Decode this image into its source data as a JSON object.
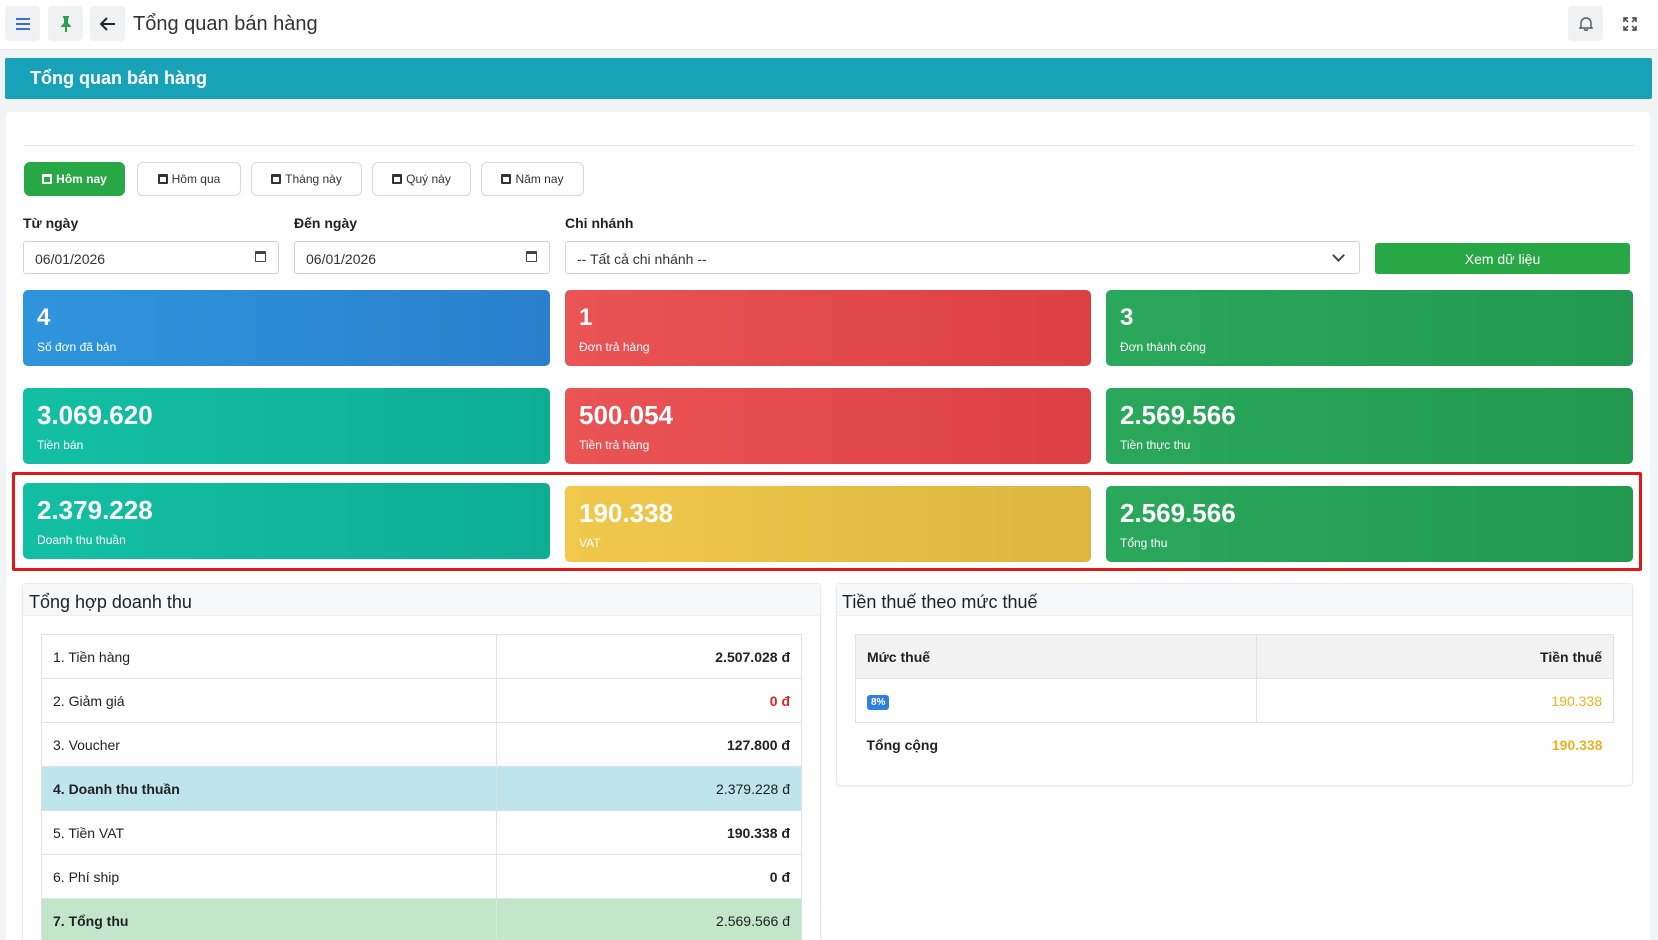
{
  "header": {
    "title": "Tổng quan bán hàng"
  },
  "page_title": "Tổng quan bán hàng",
  "icons": {
    "menu": "menu-icon",
    "pin": "pin-icon",
    "back": "arrow-left-icon",
    "bell": "bell-icon",
    "fullscreen": "fullscreen-icon",
    "calendar": "calendar-icon",
    "dropdown": "chevron-down-icon"
  },
  "periods": [
    {
      "label": "Hôm nay",
      "active": true
    },
    {
      "label": "Hôm qua",
      "active": false
    },
    {
      "label": "Tháng này",
      "active": false
    },
    {
      "label": "Quý này",
      "active": false
    },
    {
      "label": "Năm nay",
      "active": false
    }
  ],
  "filters": {
    "from_label": "Từ ngày",
    "from_value": "06/01/2026",
    "to_label": "Đến ngày",
    "to_value": "06/01/2026",
    "branch_label": "Chi nhánh",
    "branch_value": "-- Tất cả chi nhánh --",
    "view_button": "Xem dữ liệu"
  },
  "stats_row1": [
    {
      "value": "4",
      "label": "Số đơn đã bán",
      "color": "#2d8bd4"
    },
    {
      "value": "1",
      "label": "Đơn trả hàng",
      "color": "#e24a4c"
    },
    {
      "value": "3",
      "label": "Đơn thành công",
      "color": "#27a155"
    }
  ],
  "stats_row2": [
    {
      "value": "3.069.620",
      "label": "Tiền bán",
      "color": "#11b89e"
    },
    {
      "value": "500.054",
      "label": "Tiền trả hàng",
      "color": "#e24a4c"
    },
    {
      "value": "2.569.566",
      "label": "Tiền thực thu",
      "color": "#27a155"
    }
  ],
  "stats_row3": [
    {
      "value": "2.379.228",
      "label": "Doanh thu thuần",
      "color": "#11b89e"
    },
    {
      "value": "190.338",
      "label": "VAT",
      "color": "#e8c046"
    },
    {
      "value": "2.569.566",
      "label": "Tổng thu",
      "color": "#27a155"
    }
  ],
  "revenue": {
    "title": "Tổng hợp doanh thu",
    "rows": [
      {
        "label": "1. Tiền hàng",
        "amount": "2.507.028 đ"
      },
      {
        "label": "2. Giảm giá",
        "amount": "0 đ"
      },
      {
        "label": "3. Voucher",
        "amount": "127.800 đ"
      },
      {
        "label": "4. Doanh thu thuần",
        "amount": "2.379.228 đ"
      },
      {
        "label": "5. Tiền VAT",
        "amount": "190.338 đ"
      },
      {
        "label": "6. Phí ship",
        "amount": "0 đ"
      },
      {
        "label": "7. Tổng thu",
        "amount": "2.569.566 đ"
      }
    ]
  },
  "tax": {
    "title": "Tiền thuế theo mức thuế",
    "col_rate": "Mức thuế",
    "col_amount": "Tiền thuế",
    "rows": [
      {
        "rate": "8%",
        "amount": "190.338"
      }
    ],
    "total_label": "Tổng cộng",
    "total_amount": "190.338"
  }
}
